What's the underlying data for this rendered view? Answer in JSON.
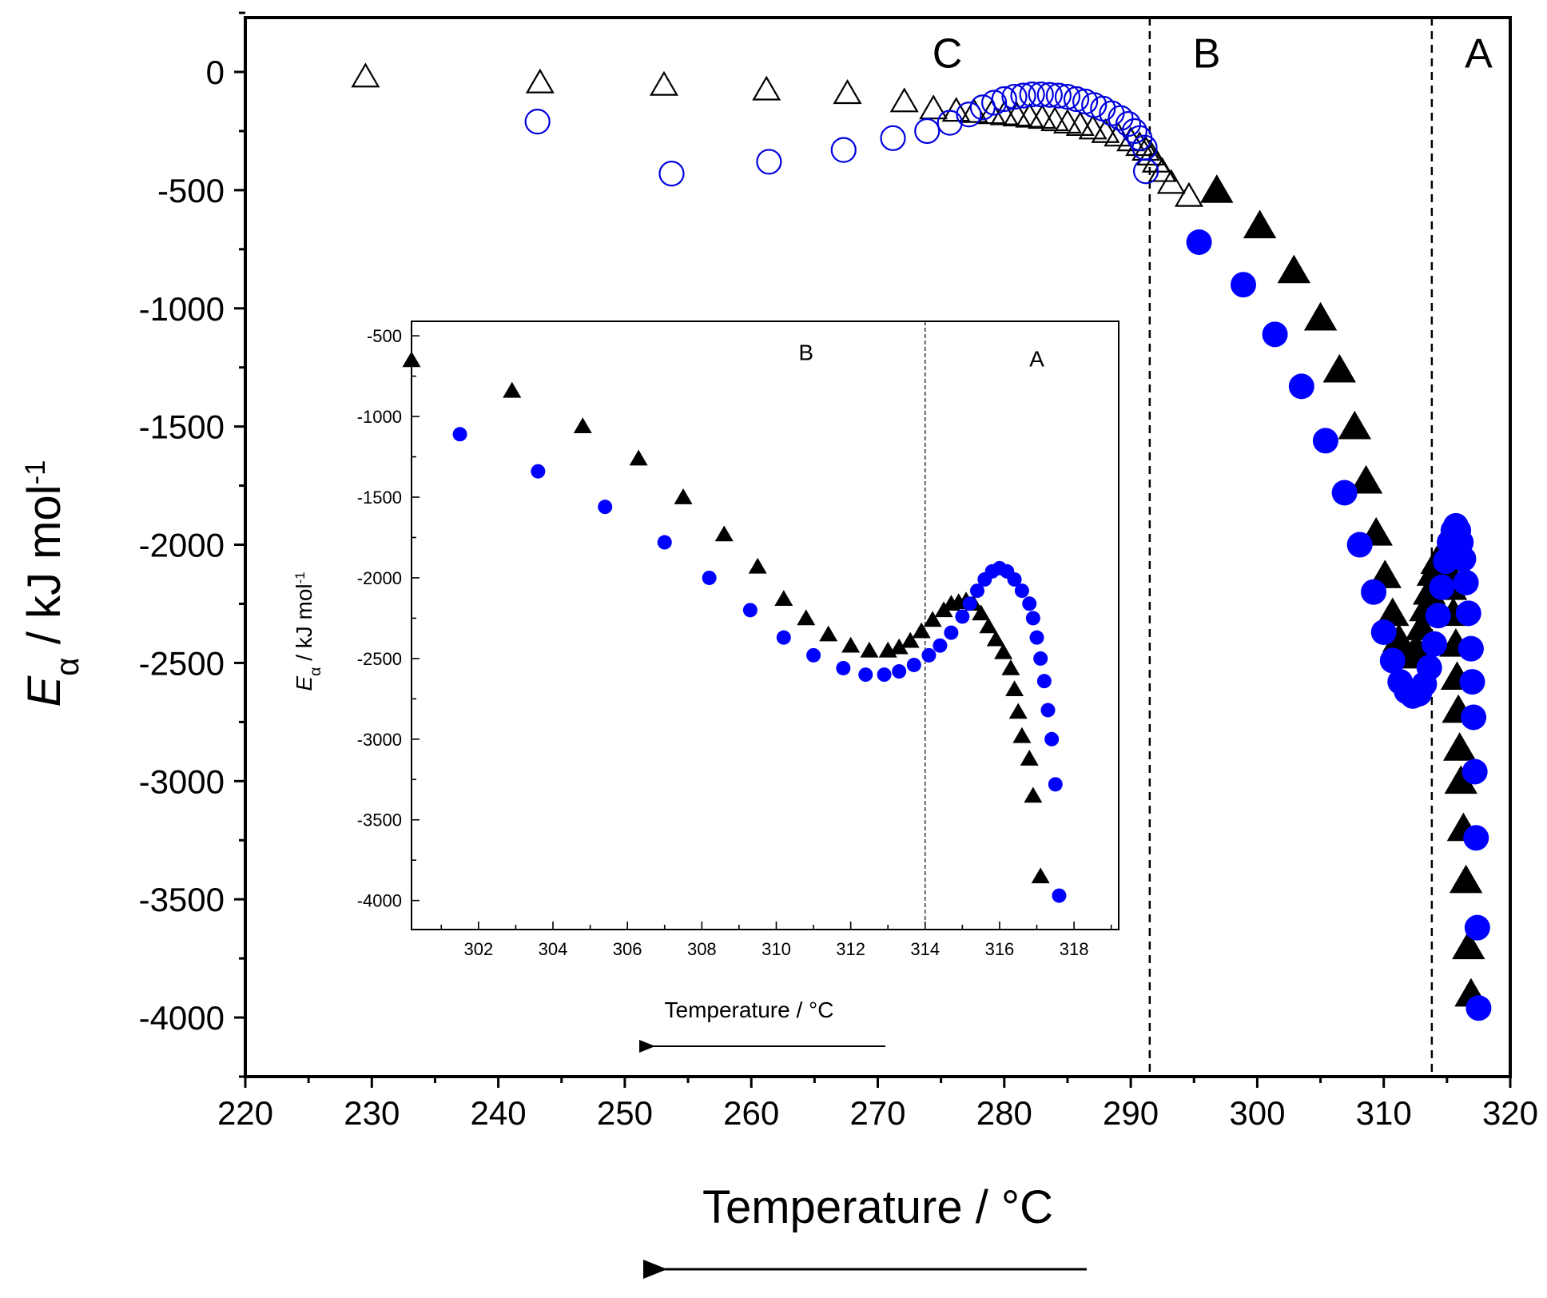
{
  "chart_data": [
    {
      "type": "scatter",
      "xlabel": "Temperature / °C",
      "ylabel": "E_α / kJ mol^-1",
      "ylabel_parts": {
        "symbol": "E",
        "subscript": "α",
        "unit": " / kJ mol",
        "superscript": "-1"
      },
      "xlim": [
        220,
        320
      ],
      "ylim": [
        -4250,
        230
      ],
      "xticks": [
        220,
        230,
        240,
        250,
        260,
        270,
        280,
        290,
        300,
        310,
        320
      ],
      "yticks": [
        0,
        -500,
        -1000,
        -1500,
        -2000,
        -2500,
        -3000,
        -3500,
        -4000
      ],
      "dividers": [
        291.5,
        313.8
      ],
      "regions": [
        {
          "label": "C",
          "x": 275.5,
          "y": 80
        },
        {
          "label": "B",
          "x": 296,
          "y": 80
        },
        {
          "label": "A",
          "x": 317.5,
          "y": 80
        }
      ],
      "series": [
        {
          "marker": "open-triangle",
          "color": "#000000",
          "points": [
            [
              229.5,
              -20
            ],
            [
              243.3,
              -45
            ],
            [
              253.1,
              -55
            ],
            [
              261.2,
              -75
            ],
            [
              267.6,
              -90
            ],
            [
              272.1,
              -125
            ],
            [
              274.4,
              -155
            ],
            [
              276.2,
              -165
            ],
            [
              277.6,
              -170
            ],
            [
              279,
              -175
            ],
            [
              280,
              -180
            ],
            [
              281,
              -185
            ],
            [
              282,
              -190
            ],
            [
              283,
              -195
            ],
            [
              284,
              -205
            ],
            [
              285,
              -215
            ],
            [
              286,
              -225
            ],
            [
              287,
              -240
            ],
            [
              288,
              -255
            ],
            [
              289,
              -270
            ],
            [
              290,
              -290
            ],
            [
              290.7,
              -310
            ],
            [
              291.2,
              -330
            ],
            [
              291.6,
              -350
            ],
            [
              292,
              -380
            ],
            [
              292.5,
              -420
            ],
            [
              293.2,
              -470
            ],
            [
              294.6,
              -525
            ]
          ]
        },
        {
          "marker": "open-circle",
          "color": "#0000e0",
          "points": [
            [
              243.1,
              -210
            ],
            [
              253.7,
              -430
            ],
            [
              261.4,
              -380
            ],
            [
              267.3,
              -330
            ],
            [
              271.2,
              -280
            ],
            [
              273.9,
              -250
            ],
            [
              275.7,
              -215
            ],
            [
              277.2,
              -180
            ],
            [
              278.3,
              -150
            ],
            [
              279.2,
              -130
            ],
            [
              280,
              -115
            ],
            [
              280.8,
              -105
            ],
            [
              281.5,
              -100
            ],
            [
              282.2,
              -95
            ],
            [
              282.9,
              -95
            ],
            [
              283.6,
              -97
            ],
            [
              284.3,
              -100
            ],
            [
              285,
              -105
            ],
            [
              285.7,
              -115
            ],
            [
              286.4,
              -125
            ],
            [
              287.1,
              -140
            ],
            [
              287.8,
              -155
            ],
            [
              288.5,
              -175
            ],
            [
              289.2,
              -195
            ],
            [
              289.8,
              -220
            ],
            [
              290.3,
              -250
            ],
            [
              290.7,
              -280
            ],
            [
              291.1,
              -320
            ],
            [
              291.2,
              -420
            ]
          ]
        },
        {
          "marker": "filled-triangle",
          "color": "#000000",
          "points": [
            [
              296.8,
              -500
            ],
            [
              300.2,
              -650
            ],
            [
              302.9,
              -840
            ],
            [
              305,
              -1040
            ],
            [
              306.5,
              -1260
            ],
            [
              307.7,
              -1500
            ],
            [
              308.6,
              -1730
            ],
            [
              309.4,
              -1950
            ],
            [
              310.1,
              -2130
            ],
            [
              310.7,
              -2290
            ],
            [
              311.2,
              -2400
            ],
            [
              311.7,
              -2450
            ],
            [
              312.2,
              -2470
            ],
            [
              312.6,
              -2440
            ],
            [
              313,
              -2350
            ],
            [
              313.3,
              -2270
            ],
            [
              313.6,
              -2200
            ],
            [
              313.9,
              -2120
            ],
            [
              314.2,
              -2070
            ],
            [
              314.5,
              -2050
            ],
            [
              314.8,
              -2060
            ],
            [
              315.1,
              -2110
            ],
            [
              315.3,
              -2180
            ],
            [
              315.5,
              -2290
            ],
            [
              315.7,
              -2420
            ],
            [
              315.8,
              -2560
            ],
            [
              315.9,
              -2700
            ],
            [
              316,
              -2860
            ],
            [
              316.1,
              -3000
            ],
            [
              316.3,
              -3200
            ],
            [
              316.5,
              -3420
            ],
            [
              316.7,
              -3700
            ],
            [
              316.9,
              -3900
            ]
          ]
        },
        {
          "marker": "filled-circle",
          "color": "#0000ff",
          "points": [
            [
              295.4,
              -720
            ],
            [
              298.9,
              -900
            ],
            [
              301.4,
              -1110
            ],
            [
              303.5,
              -1330
            ],
            [
              305.4,
              -1560
            ],
            [
              306.9,
              -1780
            ],
            [
              308.1,
              -2000
            ],
            [
              309.2,
              -2200
            ],
            [
              310,
              -2370
            ],
            [
              310.7,
              -2490
            ],
            [
              311.3,
              -2580
            ],
            [
              311.8,
              -2620
            ],
            [
              312.3,
              -2640
            ],
            [
              312.8,
              -2630
            ],
            [
              313.2,
              -2590
            ],
            [
              313.6,
              -2520
            ],
            [
              314,
              -2420
            ],
            [
              314.3,
              -2300
            ],
            [
              314.6,
              -2180
            ],
            [
              314.9,
              -2070
            ],
            [
              315.2,
              -1990
            ],
            [
              315.5,
              -1940
            ],
            [
              315.7,
              -1920
            ],
            [
              315.9,
              -1940
            ],
            [
              316.1,
              -1990
            ],
            [
              316.3,
              -2060
            ],
            [
              316.5,
              -2160
            ],
            [
              316.7,
              -2290
            ],
            [
              316.9,
              -2440
            ],
            [
              317,
              -2580
            ],
            [
              317.1,
              -2730
            ],
            [
              317.2,
              -2960
            ],
            [
              317.3,
              -3240
            ],
            [
              317.4,
              -3620
            ],
            [
              317.5,
              -3960
            ]
          ]
        }
      ]
    },
    {
      "type": "scatter",
      "xlabel": "Temperature / °C",
      "ylabel": "E_α / kJ mol^-1",
      "ylabel_parts": {
        "symbol": "E",
        "subscript": "α",
        "unit": " / kJ mol",
        "superscript": "-1"
      },
      "xlim": [
        300.2,
        319.2
      ],
      "ylim": [
        -4180,
        -410
      ],
      "xticks": [
        302,
        304,
        306,
        308,
        310,
        312,
        314,
        316,
        318
      ],
      "yticks": [
        -500,
        -1000,
        -1500,
        -2000,
        -2500,
        -3000,
        -3500,
        -4000
      ],
      "dividers": [
        314
      ],
      "regions": [
        {
          "label": "B",
          "x": 310.8,
          "y": -600
        },
        {
          "label": "A",
          "x": 317,
          "y": -640
        }
      ],
      "series": [
        {
          "marker": "filled-triangle",
          "color": "#000000",
          "points": [
            [
              300.2,
              -650
            ],
            [
              302.9,
              -840
            ],
            [
              304.8,
              -1060
            ],
            [
              306.3,
              -1260
            ],
            [
              307.5,
              -1500
            ],
            [
              308.6,
              -1730
            ],
            [
              309.5,
              -1930
            ],
            [
              310.2,
              -2130
            ],
            [
              310.8,
              -2250
            ],
            [
              311.4,
              -2350
            ],
            [
              312,
              -2420
            ],
            [
              312.5,
              -2450
            ],
            [
              313,
              -2450
            ],
            [
              313.3,
              -2430
            ],
            [
              313.6,
              -2390
            ],
            [
              313.9,
              -2330
            ],
            [
              314.2,
              -2260
            ],
            [
              314.5,
              -2200
            ],
            [
              314.7,
              -2160
            ],
            [
              314.9,
              -2150
            ],
            [
              315.1,
              -2140
            ],
            [
              315.3,
              -2160
            ],
            [
              315.5,
              -2220
            ],
            [
              315.7,
              -2300
            ],
            [
              315.9,
              -2380
            ],
            [
              316.1,
              -2460
            ],
            [
              316.3,
              -2560
            ],
            [
              316.4,
              -2690
            ],
            [
              316.5,
              -2830
            ],
            [
              316.6,
              -2980
            ],
            [
              316.8,
              -3120
            ],
            [
              316.9,
              -3350
            ],
            [
              317.1,
              -3850
            ]
          ]
        },
        {
          "marker": "filled-circle",
          "color": "#0000ff",
          "points": [
            [
              301.5,
              -1110
            ],
            [
              303.6,
              -1340
            ],
            [
              305.4,
              -1560
            ],
            [
              307,
              -1780
            ],
            [
              308.2,
              -2000
            ],
            [
              309.3,
              -2200
            ],
            [
              310.2,
              -2370
            ],
            [
              311,
              -2480
            ],
            [
              311.8,
              -2560
            ],
            [
              312.4,
              -2600
            ],
            [
              312.9,
              -2600
            ],
            [
              313.3,
              -2580
            ],
            [
              313.7,
              -2540
            ],
            [
              314.1,
              -2480
            ],
            [
              314.4,
              -2420
            ],
            [
              314.7,
              -2340
            ],
            [
              315,
              -2240
            ],
            [
              315.2,
              -2160
            ],
            [
              315.4,
              -2080
            ],
            [
              315.6,
              -2010
            ],
            [
              315.8,
              -1960
            ],
            [
              316,
              -1940
            ],
            [
              316.2,
              -1960
            ],
            [
              316.4,
              -2010
            ],
            [
              316.6,
              -2080
            ],
            [
              316.8,
              -2160
            ],
            [
              316.9,
              -2250
            ],
            [
              317,
              -2370
            ],
            [
              317.1,
              -2500
            ],
            [
              317.2,
              -2640
            ],
            [
              317.3,
              -2820
            ],
            [
              317.4,
              -3000
            ],
            [
              317.5,
              -3280
            ],
            [
              317.6,
              -3970
            ]
          ]
        }
      ]
    }
  ],
  "direction_arrow": "←"
}
